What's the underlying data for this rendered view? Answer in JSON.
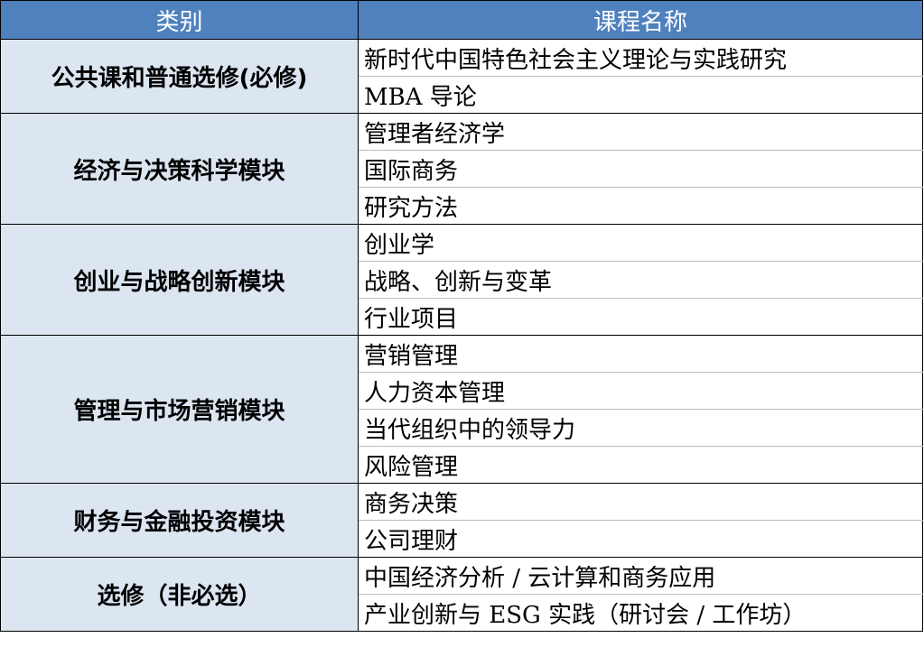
{
  "header": {
    "category": "类别",
    "course": "课程名称"
  },
  "colors": {
    "header_bg": "#4F81BD",
    "category_bg": "#DCE6F1"
  },
  "groups": [
    {
      "category": "公共课和普通选修(必修)",
      "courses": [
        "新时代中国特色社会主义理论与实践研究",
        "MBA 导论"
      ]
    },
    {
      "category": "经济与决策科学模块",
      "courses": [
        "管理者经济学",
        "国际商务",
        "研究方法"
      ]
    },
    {
      "category": "创业与战略创新模块",
      "courses": [
        "创业学",
        "战略、创新与变革",
        "行业项目"
      ]
    },
    {
      "category": "管理与市场营销模块",
      "courses": [
        "营销管理",
        "人力资本管理",
        "当代组织中的领导力",
        "风险管理"
      ]
    },
    {
      "category": "财务与金融投资模块",
      "courses": [
        "商务决策",
        "公司理财"
      ]
    },
    {
      "category": "选修（非必选）",
      "courses": [
        "中国经济分析 / 云计算和商务应用",
        "产业创新与 ESG 实践（研讨会 / 工作坊）"
      ]
    }
  ]
}
